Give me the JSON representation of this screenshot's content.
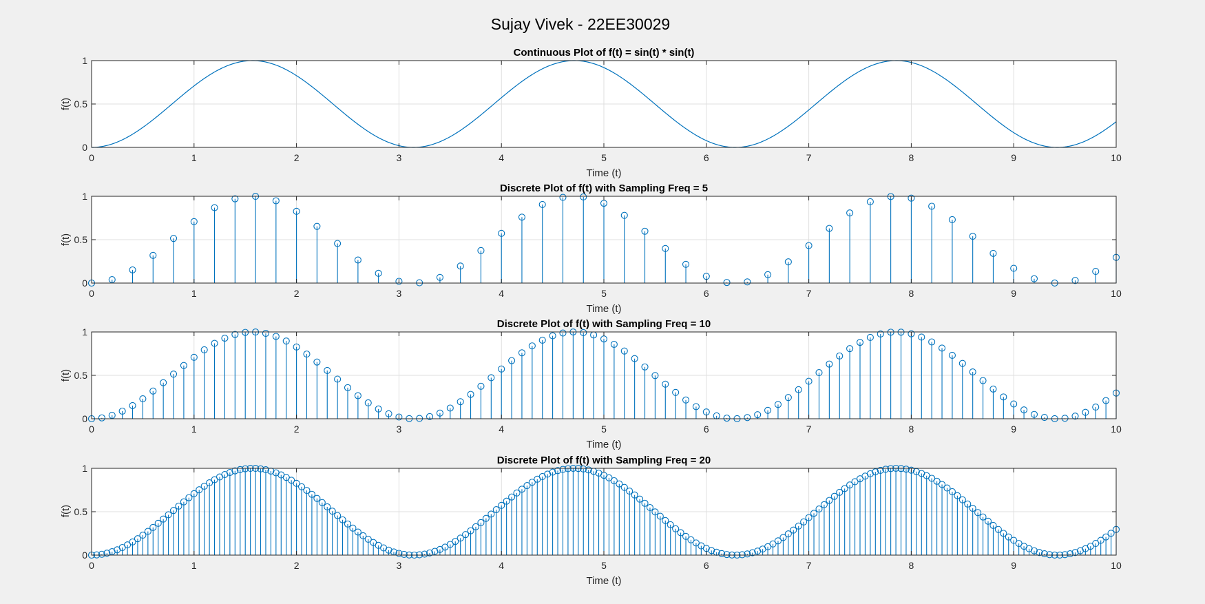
{
  "figure": {
    "suptitle": "Sujay Vivek - 22EE30029",
    "background": "#f0f0f0",
    "axes_background": "#ffffff",
    "line_color": "#0072bd"
  },
  "chart_data": [
    {
      "type": "line",
      "title": "Continuous Plot of f(t) = sin(t) * sin(t)",
      "xlabel": "Time (t)",
      "ylabel": "f(t)",
      "function": "sin(t)^2",
      "t_range": [
        0,
        10
      ],
      "series": [
        {
          "x": [
            0,
            0.25,
            0.5,
            0.75,
            1,
            1.25,
            1.5,
            1.75,
            2,
            2.25,
            2.5,
            2.75,
            3,
            3.25,
            3.5,
            3.75,
            4,
            4.25,
            4.5,
            4.75,
            5,
            5.25,
            5.5,
            5.75,
            6,
            6.25,
            6.5,
            6.75,
            7,
            7.25,
            7.5,
            7.75,
            8,
            8.25,
            8.5,
            8.75,
            9,
            9.25,
            9.5,
            9.75,
            10
          ],
          "y": [
            0,
            0.061,
            0.23,
            0.464,
            0.708,
            0.9,
            0.995,
            0.968,
            0.827,
            0.604,
            0.358,
            0.145,
            0.02,
            0.012,
            0.123,
            0.325,
            0.573,
            0.802,
            0.955,
            0.999,
            0.919,
            0.737,
            0.497,
            0.262,
            0.078,
            0.001,
            0.046,
            0.203,
            0.432,
            0.676,
            0.879,
            0.99,
            0.979,
            0.85,
            0.636,
            0.389,
            0.17,
            0.03,
            0.005,
            0.101,
            0.296
          ]
        }
      ],
      "xlim": [
        0,
        10
      ],
      "ylim": [
        0,
        1
      ],
      "xticks": [
        "0",
        "1",
        "2",
        "3",
        "4",
        "5",
        "6",
        "7",
        "8",
        "9",
        "10"
      ],
      "yticks": [
        "0",
        "0.5",
        "1"
      ],
      "grid": true
    },
    {
      "type": "stem",
      "title": "Discrete Plot of f(t) with Sampling Freq = 5",
      "xlabel": "Time (t)",
      "ylabel": "f(t)",
      "function": "sin(t)^2",
      "sampling_freq": 5,
      "t_range": [
        0,
        10
      ],
      "xlim": [
        0,
        10
      ],
      "ylim": [
        0,
        1
      ],
      "xticks": [
        "0",
        "1",
        "2",
        "3",
        "4",
        "5",
        "6",
        "7",
        "8",
        "9",
        "10"
      ],
      "yticks": [
        "0",
        "0.5",
        "1"
      ],
      "grid": true
    },
    {
      "type": "stem",
      "title": "Discrete Plot of f(t) with Sampling Freq = 10",
      "xlabel": "Time (t)",
      "ylabel": "f(t)",
      "function": "sin(t)^2",
      "sampling_freq": 10,
      "t_range": [
        0,
        10
      ],
      "xlim": [
        0,
        10
      ],
      "ylim": [
        0,
        1
      ],
      "xticks": [
        "0",
        "1",
        "2",
        "3",
        "4",
        "5",
        "6",
        "7",
        "8",
        "9",
        "10"
      ],
      "yticks": [
        "0",
        "0.5",
        "1"
      ],
      "grid": true
    },
    {
      "type": "stem",
      "title": "Discrete Plot of f(t) with Sampling Freq = 20",
      "xlabel": "Time (t)",
      "ylabel": "f(t)",
      "function": "sin(t)^2",
      "sampling_freq": 20,
      "t_range": [
        0,
        10
      ],
      "xlim": [
        0,
        10
      ],
      "ylim": [
        0,
        1
      ],
      "xticks": [
        "0",
        "1",
        "2",
        "3",
        "4",
        "5",
        "6",
        "7",
        "8",
        "9",
        "10"
      ],
      "yticks": [
        "0",
        "0.5",
        "1"
      ],
      "grid": true
    }
  ]
}
